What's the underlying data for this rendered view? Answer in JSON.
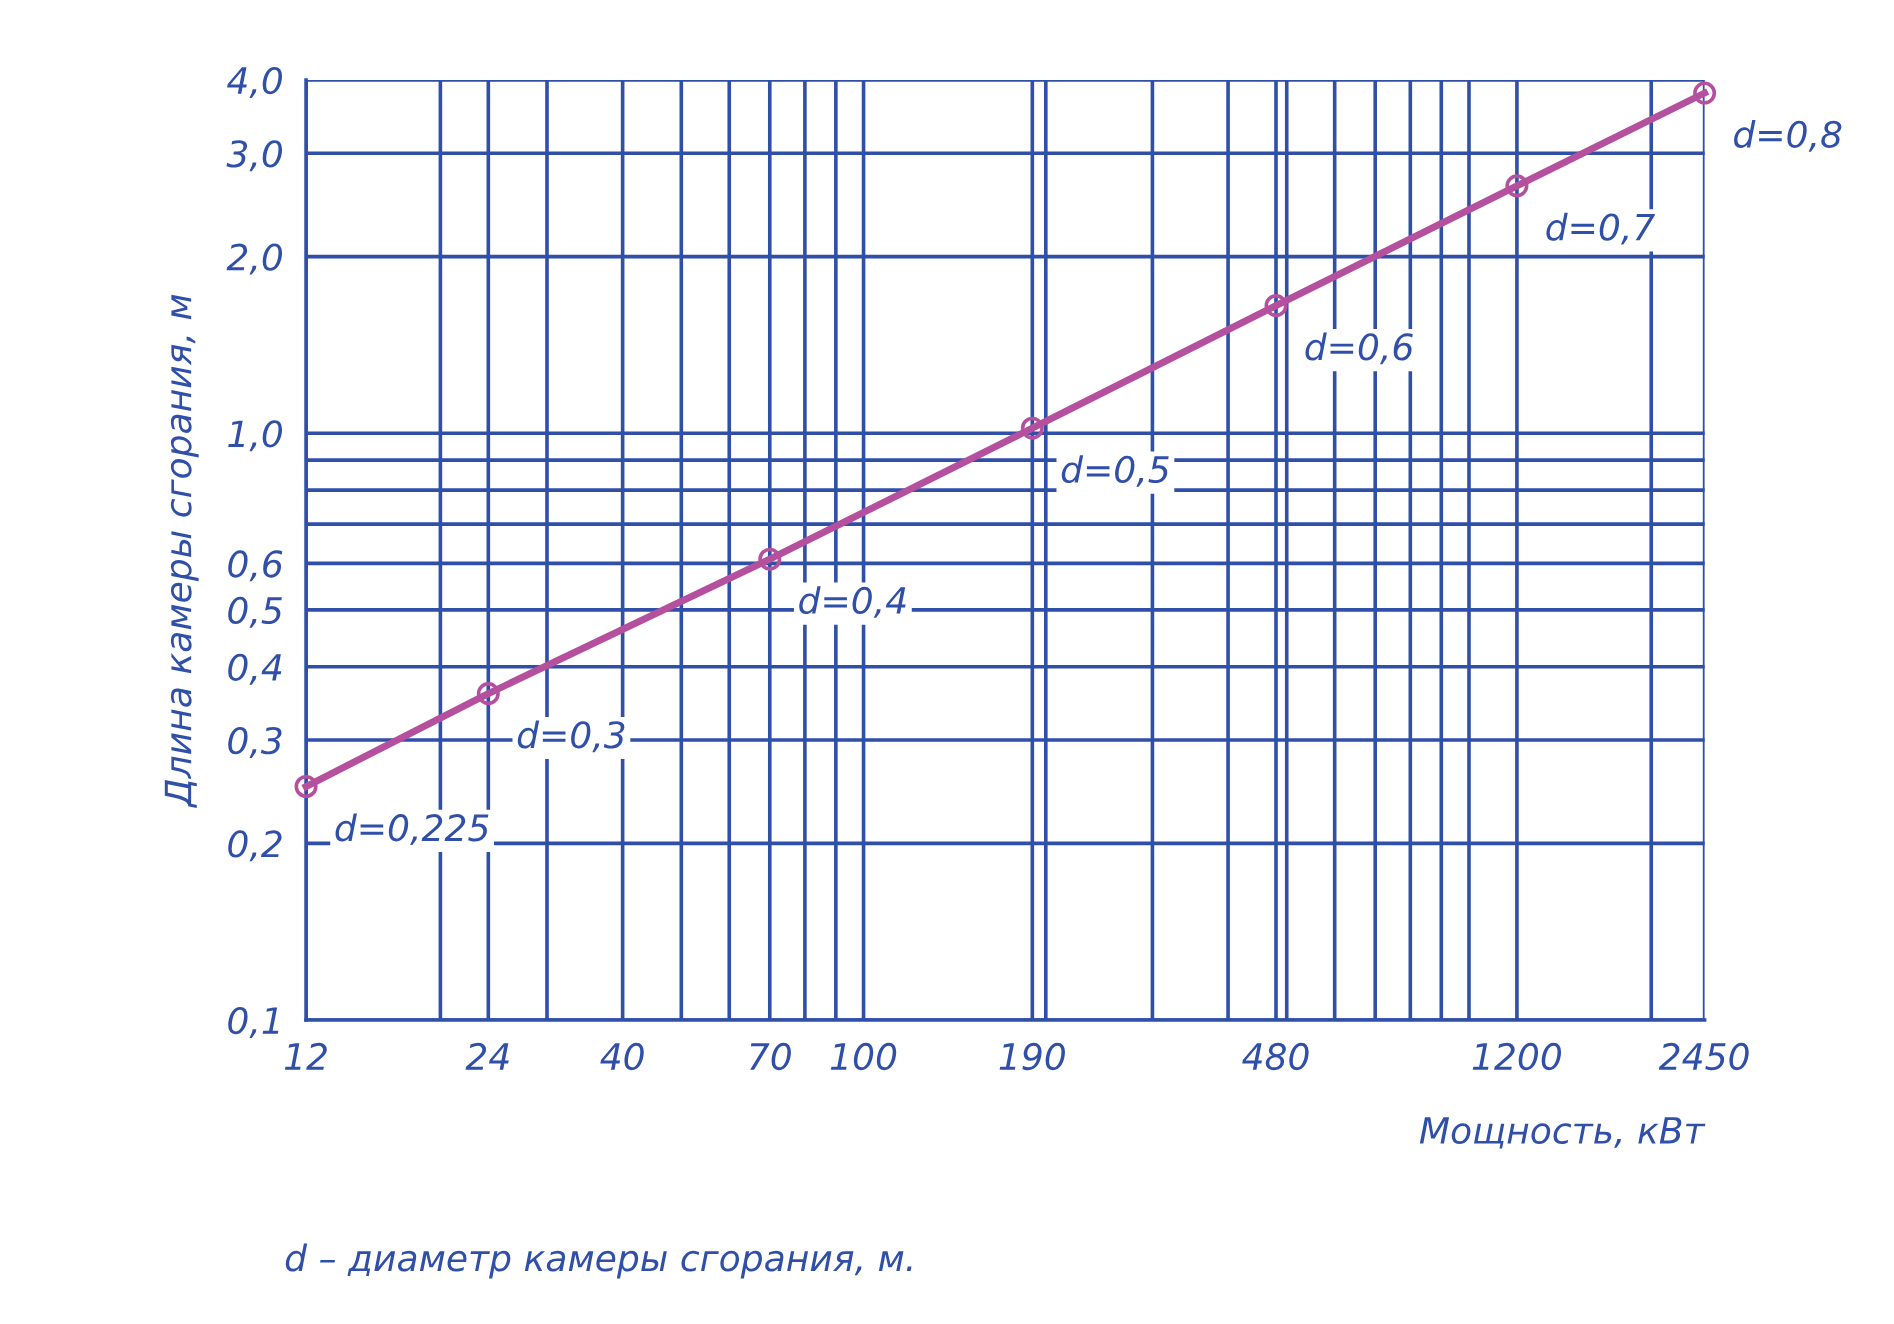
{
  "chart_data": {
    "type": "line",
    "xlabel": "Мощность, кВт",
    "ylabel": "Длина камеры сгорания, м",
    "log": "xy",
    "grid": true,
    "marker": "circle",
    "line_style": "solid",
    "x": [
      12,
      24,
      70,
      190,
      480,
      1200,
      2450
    ],
    "series": [
      {
        "color": "#b5509f",
        "values": [
          0.25,
          0.36,
          0.61,
          1.02,
          1.65,
          2.64,
          3.8
        ]
      }
    ],
    "xlim": [
      12,
      2450
    ],
    "ylim": [
      0.1,
      4.0
    ],
    "xticks": [
      12,
      {
        "value": 20,
        "label": null
      },
      24,
      {
        "value": 30,
        "label": null
      },
      40,
      {
        "value": 50,
        "label": null
      },
      {
        "value": 60,
        "label": null
      },
      70,
      {
        "value": 80,
        "label": null
      },
      {
        "value": 90,
        "label": null
      },
      100,
      190,
      {
        "value": 200,
        "label": null
      },
      {
        "value": 300,
        "label": null
      },
      {
        "value": 400,
        "label": null
      },
      480,
      {
        "value": 500,
        "label": null
      },
      {
        "value": 600,
        "label": null
      },
      {
        "value": 700,
        "label": null
      },
      {
        "value": 800,
        "label": null
      },
      {
        "value": 900,
        "label": null
      },
      {
        "value": 1000,
        "label": null
      },
      1200,
      {
        "value": 2000,
        "label": null
      },
      2450
    ],
    "yticks": [
      {
        "value": 0.1,
        "label": "0,1"
      },
      {
        "value": 0.2,
        "label": "0,2"
      },
      {
        "value": 0.3,
        "label": "0,3"
      },
      {
        "value": 0.4,
        "label": "0,4"
      },
      {
        "value": 0.5,
        "label": "0,5"
      },
      {
        "value": 0.6,
        "label": "0,6"
      },
      {
        "value": 0.7,
        "label": null
      },
      {
        "value": 0.8,
        "label": null
      },
      {
        "value": 0.9,
        "label": null
      },
      {
        "value": 1.0,
        "label": "1,0"
      },
      {
        "value": 2.0,
        "label": "2,0"
      },
      {
        "value": 3.0,
        "label": "3,0"
      },
      {
        "value": 4.0,
        "label": "4,0"
      }
    ],
    "annotations": [
      {
        "text": "d=0,225",
        "x": 12,
        "y": 0.25
      },
      {
        "text": "d=0,3",
        "x": 24,
        "y": 0.36
      },
      {
        "text": "d=0,4",
        "x": 70,
        "y": 0.61
      },
      {
        "text": "d=0,5",
        "x": 190,
        "y": 1.02
      },
      {
        "text": "d=0,6",
        "x": 480,
        "y": 1.65
      },
      {
        "text": "d=0,7",
        "x": 1200,
        "y": 2.64
      },
      {
        "text": "d=0,8",
        "x": 2450,
        "y": 3.8
      },
      "d – диаметр камеры сгорания, м."
    ]
  }
}
